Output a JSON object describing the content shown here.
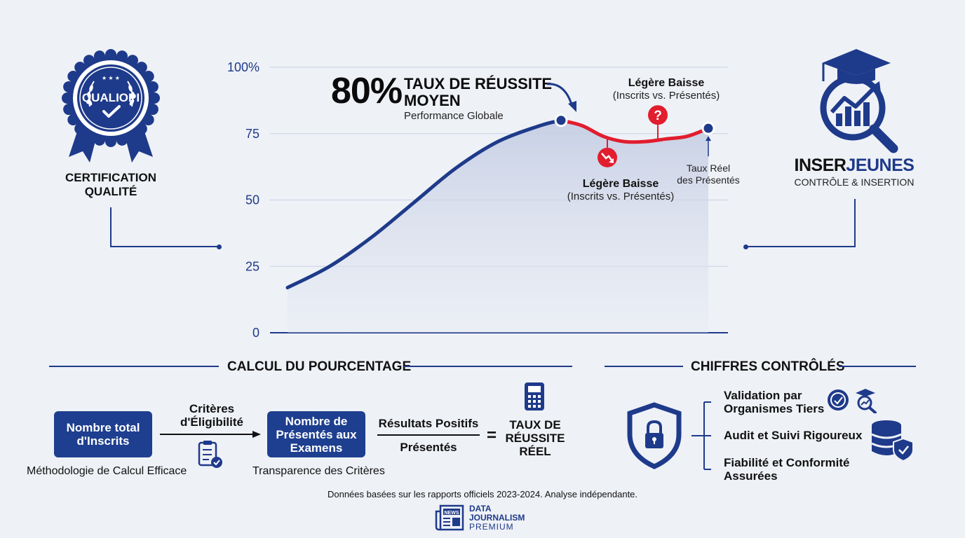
{
  "left_badge": {
    "seal_text": "QUALIOPI",
    "label_line1": "CERTIFICATION",
    "label_line2": "QUALITÉ"
  },
  "right_logo": {
    "title_part1": "INSER",
    "title_part2": "JEUNES",
    "subtitle": "CONTRÔLE & INSERTION"
  },
  "headline": {
    "value": "80%",
    "title": "TAUX DE RÉUSSITE MOYEN",
    "subtitle": "Performance Globale"
  },
  "annotations": {
    "top": {
      "title": "Légère Baisse",
      "sub": "(Inscrits vs. Présentés)"
    },
    "low": {
      "title": "Légère Baisse",
      "sub": "(Inscrits vs. Présentés)"
    },
    "end": {
      "line1": "Taux Réel",
      "line2": "des Présentés"
    }
  },
  "chart_data": {
    "type": "area",
    "y_ticks": [
      "0",
      "25",
      "50",
      "75",
      "100%"
    ],
    "ylim": [
      0,
      100
    ],
    "x": [
      0,
      0.1,
      0.2,
      0.3,
      0.4,
      0.5,
      0.6,
      0.65,
      0.7,
      0.75,
      0.8,
      0.85,
      0.9,
      0.95,
      1.0
    ],
    "values": [
      17,
      25,
      36,
      49,
      62,
      72,
      78,
      80,
      78,
      74,
      72,
      72,
      73,
      74,
      77
    ],
    "markers": [
      {
        "x": 0.65,
        "y": 80,
        "style": "dot"
      },
      {
        "x": 1.0,
        "y": 77,
        "style": "dot"
      },
      {
        "x": 0.76,
        "y": 66,
        "style": "down-alert"
      },
      {
        "x": 0.88,
        "y": 82,
        "style": "question-alert"
      }
    ],
    "grid": true,
    "colors": {
      "line": "#1e3a8a",
      "decline": "#e11d2e",
      "fill": "#c9d2e6"
    }
  },
  "calcul": {
    "section_title": "CALCUL DU POURCENTAGE",
    "box1": "Nombre total d'Inscrits",
    "arrow_label_line1": "Critères",
    "arrow_label_line2": "d'Éligibilité",
    "box2": "Nombre de Présentés aux Examens",
    "numerator": "Résultats Positifs",
    "denominator": "Présentés",
    "equals": "=",
    "result_line1": "TAUX DE",
    "result_line2": "RÉUSSITE",
    "result_line3": "RÉEL",
    "caption1": "Méthodologie de Calcul Efficace",
    "caption2": "Transparence des Critères"
  },
  "chiffres": {
    "section_title": "CHIFFRES CONTRÔLÉS",
    "item1_line1": "Validation par",
    "item1_line2": "Organismes Tiers",
    "item2": "Audit et Suivi Rigoureux",
    "item3_line1": "Fiabilité et Conformité",
    "item3_line2": "Assurées"
  },
  "footer": {
    "note": "Données basées sur les rapports officiels 2023-2024. Analyse indépendante.",
    "brand_icon_text": "NEWS",
    "brand_line1": "DATA",
    "brand_line2": "JOURNALISM",
    "brand_line3": "PREMIUM"
  }
}
